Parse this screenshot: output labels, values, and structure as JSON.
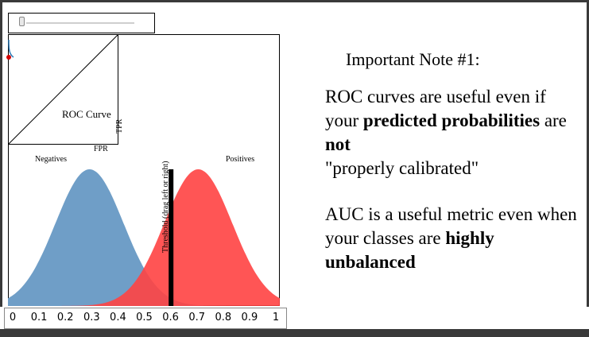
{
  "slider": {
    "value": 0.6,
    "min": 0,
    "max": 1
  },
  "roc": {
    "title": "ROC Curve",
    "xlabel": "FPR",
    "ylabel": "TPR"
  },
  "distributions": {
    "negatives_label": "Negatives",
    "positives_label": "Positives",
    "threshold_label": "Threshold (drag left or right)",
    "negatives_color": "#6f9ec7",
    "positives_color": "#ff4242"
  },
  "chart_data": {
    "type": "area",
    "series": [
      {
        "name": "Negatives",
        "mean": 0.3,
        "color": "#6f9ec7"
      },
      {
        "name": "Positives",
        "mean": 0.7,
        "color": "#ff4242"
      }
    ],
    "threshold": 0.6,
    "xlim": [
      0,
      1
    ],
    "ticks": [
      "0",
      "0.1",
      "0.2",
      "0.3",
      "0.4",
      "0.5",
      "0.6",
      "0.7",
      "0.8",
      "0.9",
      "1"
    ]
  },
  "note": {
    "title": "Important Note #1:",
    "p1_a": "ROC curves are useful even if your ",
    "p1_b": "predicted probabilities",
    "p1_c": " are ",
    "p1_d": "not",
    "p1_e": "\"properly calibrated\"",
    "p2_a": "AUC is a useful metric even when your classes are ",
    "p2_b": "highly unbalanced"
  }
}
